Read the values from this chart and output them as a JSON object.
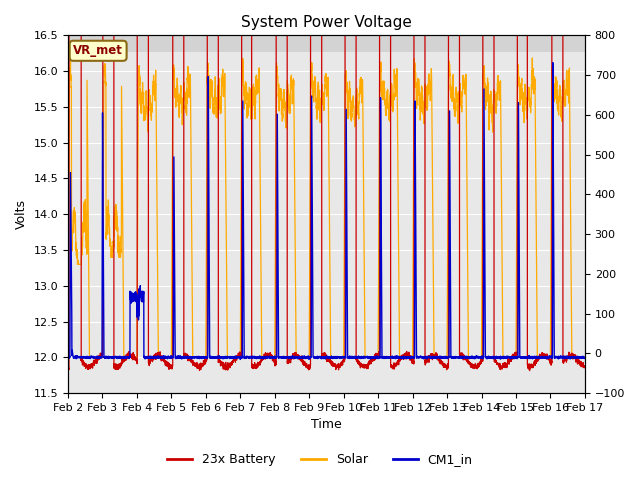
{
  "title": "System Power Voltage",
  "xlabel": "Time",
  "ylabel_left": "Volts",
  "ylim_left": [
    11.5,
    16.5
  ],
  "ylim_right": [
    -100,
    800
  ],
  "xlim": [
    0,
    15
  ],
  "xtick_labels": [
    "Feb 2",
    "Feb 3",
    "Feb 4",
    "Feb 5",
    "Feb 6",
    "Feb 7",
    "Feb 8",
    "Feb 9",
    "Feb 10",
    "Feb 11",
    "Feb 12",
    "Feb 13",
    "Feb 14",
    "Feb 15",
    "Feb 16",
    "Feb 17"
  ],
  "xtick_positions": [
    0,
    1,
    2,
    3,
    4,
    5,
    6,
    7,
    8,
    9,
    10,
    11,
    12,
    13,
    14,
    15
  ],
  "ytick_left": [
    11.5,
    12.0,
    12.5,
    13.0,
    13.5,
    14.0,
    14.5,
    15.0,
    15.5,
    16.0,
    16.5
  ],
  "ytick_right": [
    -100,
    0,
    100,
    200,
    300,
    400,
    500,
    600,
    700,
    800
  ],
  "shaded_threshold": 16.27,
  "vr_met_label": "VR_met",
  "legend_labels": [
    "23x Battery",
    "Solar",
    "CM1_in"
  ],
  "legend_colors": [
    "#cc0000",
    "#ffaa00",
    "#0000cc"
  ],
  "line_colors_battery": "#cc0000",
  "line_colors_solar": "#ffaa00",
  "line_colors_cm1": "#0000cc",
  "background_color": "#e8e8e8",
  "shaded_color": "#d3d3d3",
  "title_fontsize": 11,
  "axis_fontsize": 9,
  "tick_fontsize": 8,
  "figsize": [
    6.4,
    4.8
  ],
  "dpi": 100
}
